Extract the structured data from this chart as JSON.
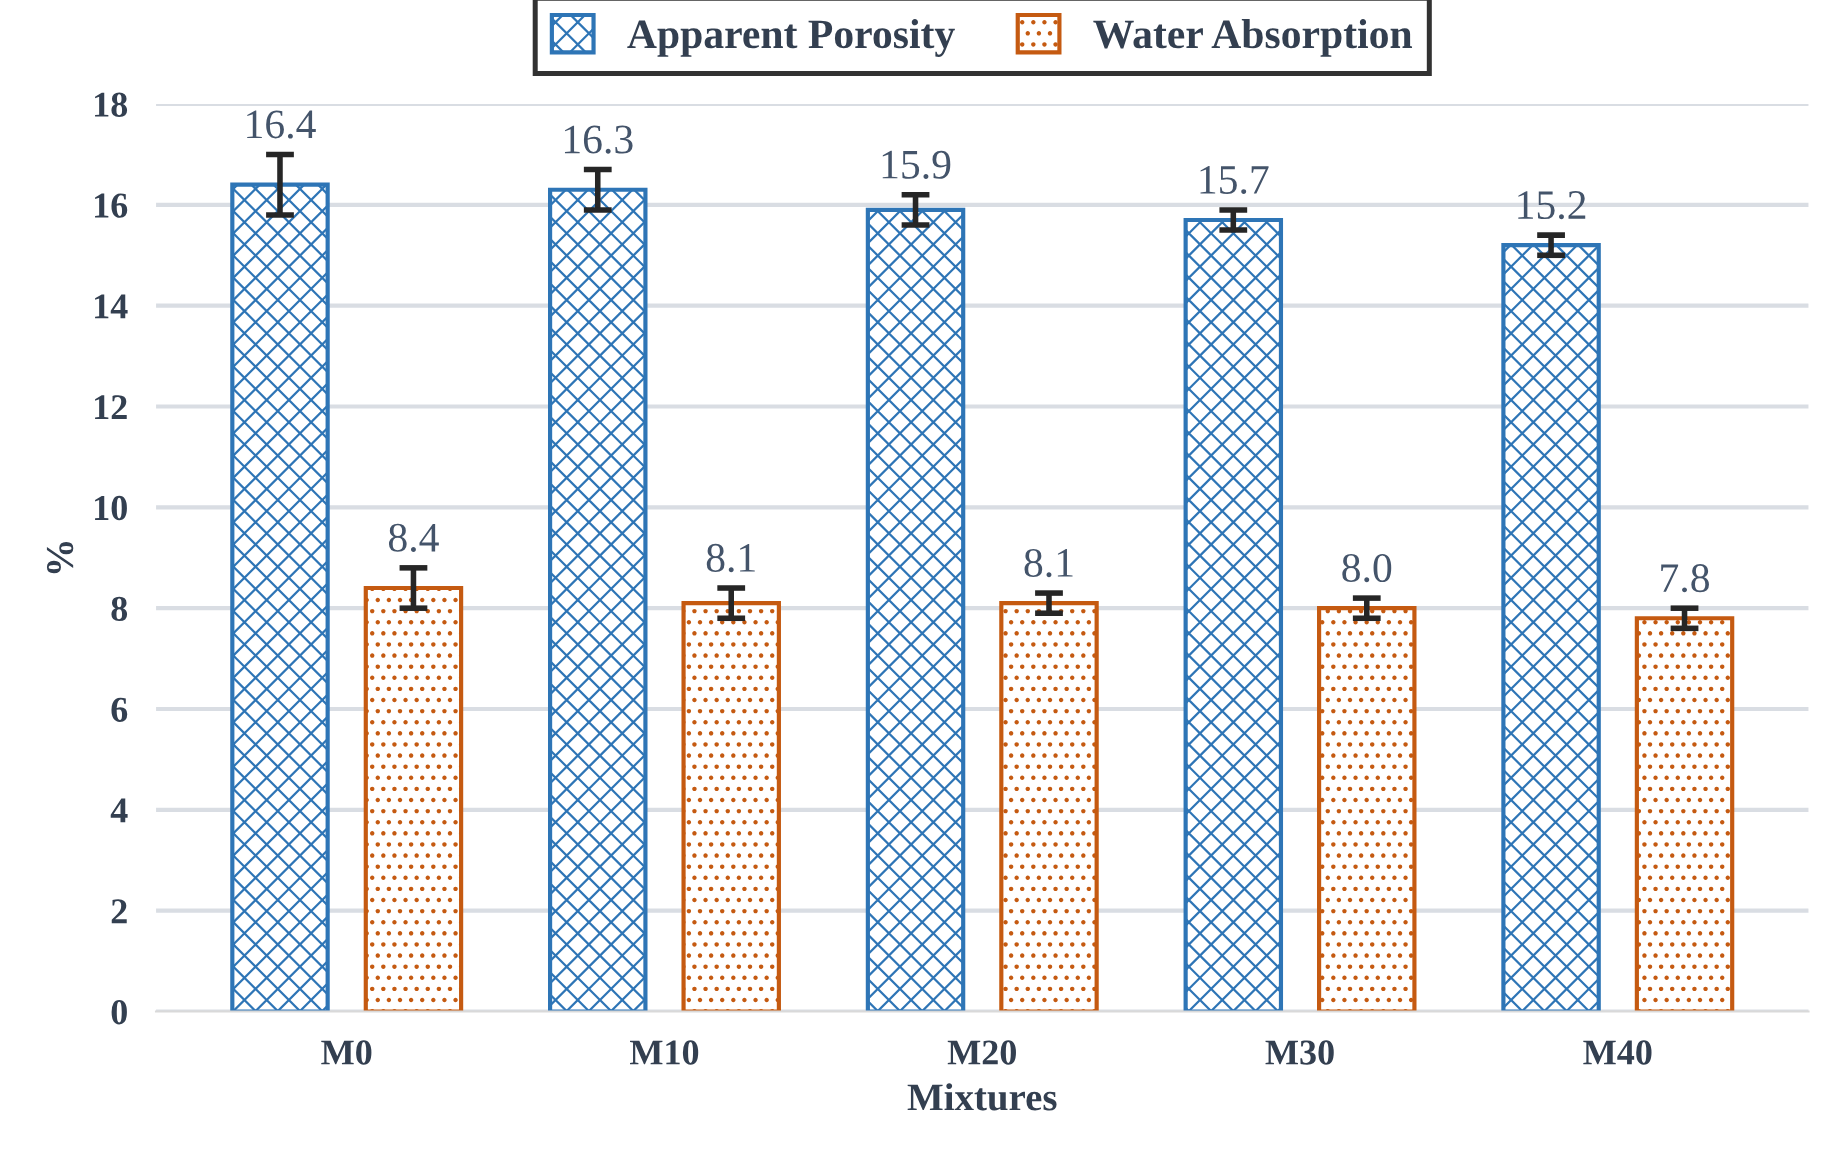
{
  "chart_data": {
    "type": "bar",
    "xlabel": "Mixtures",
    "ylabel": "%",
    "categories": [
      "M0",
      "M10",
      "M20",
      "M30",
      "M40"
    ],
    "series": [
      {
        "name": "Apparent Porosity",
        "color": "#2e75b6",
        "values": [
          16.4,
          16.3,
          15.9,
          15.7,
          15.2
        ],
        "errors": [
          0.6,
          0.4,
          0.3,
          0.2,
          0.2
        ]
      },
      {
        "name": "Water Absorption",
        "color": "#c55a11",
        "values": [
          8.4,
          8.1,
          8.1,
          8.0,
          7.8
        ],
        "errors": [
          0.4,
          0.3,
          0.2,
          0.2,
          0.2
        ]
      }
    ],
    "value_labels": [
      [
        "16.4",
        "16.3",
        "15.9",
        "15.7",
        "15.2"
      ],
      [
        "8.4",
        "8.1",
        "8.1",
        "8.0",
        "7.8"
      ]
    ],
    "ylim": [
      0,
      18
    ],
    "yticks": [
      0,
      2,
      4,
      6,
      8,
      10,
      12,
      14,
      16,
      18
    ],
    "grid": "y",
    "legend": "top"
  }
}
